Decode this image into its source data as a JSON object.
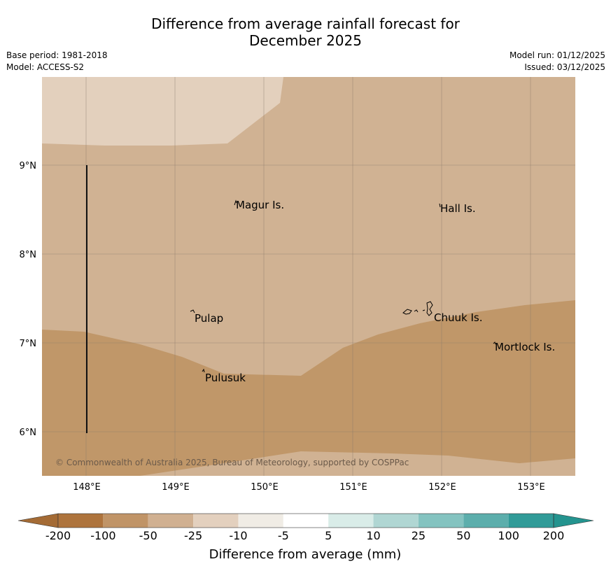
{
  "title": {
    "line1": "Difference from average rainfall forecast for",
    "line2": "December 2025"
  },
  "meta": {
    "base_period": "Base period: 1981-2018",
    "model": "Model: ACCESS-S2",
    "model_run": "Model run: 01/12/2025",
    "issued": "Issued: 03/12/2025"
  },
  "map": {
    "lon_ticks": [
      "148°E",
      "149°E",
      "150°E",
      "151°E",
      "152°E",
      "153°E"
    ],
    "lat_ticks": [
      "9°N",
      "8°N",
      "7°N",
      "6°N"
    ],
    "places": [
      {
        "name": "Magur Is.",
        "lon": 149.66,
        "lat": 8.57
      },
      {
        "name": "Hall Is.",
        "lon": 151.98,
        "lat": 8.52
      },
      {
        "name": "Pulap",
        "lon": 149.18,
        "lat": 7.34
      },
      {
        "name": "Chuuk Is.",
        "lon": 151.85,
        "lat": 7.4
      },
      {
        "name": "Mortlock Is.",
        "lon": 152.58,
        "lat": 7.0
      },
      {
        "name": "Pulusuk",
        "lon": 149.3,
        "lat": 6.68
      }
    ],
    "copyright": "© Commonwealth of Australia 2025, Bureau of Meteorology, supported by COSPPac",
    "colors": {
      "band_minus10_minus25": "#e3d0bd",
      "band_minus25_minus50": "#d0b293",
      "band_minus50_minus100": "#c09769",
      "gridline": "#8a7a6a"
    }
  },
  "colorbar": {
    "tick_labels": [
      "-200",
      "-100",
      "-50",
      "-25",
      "-10",
      "-5",
      "5",
      "10",
      "25",
      "50",
      "100",
      "200"
    ],
    "colors": [
      "#ae743d",
      "#c09467",
      "#d0b091",
      "#e3d0be",
      "#f0ece5",
      "#ffffff",
      "#d9ece8",
      "#b0d6d3",
      "#84c3c0",
      "#5caeac",
      "#319b98"
    ],
    "under_color": "#a46b35",
    "over_color": "#24948f",
    "label": "Difference from average (mm)"
  }
}
